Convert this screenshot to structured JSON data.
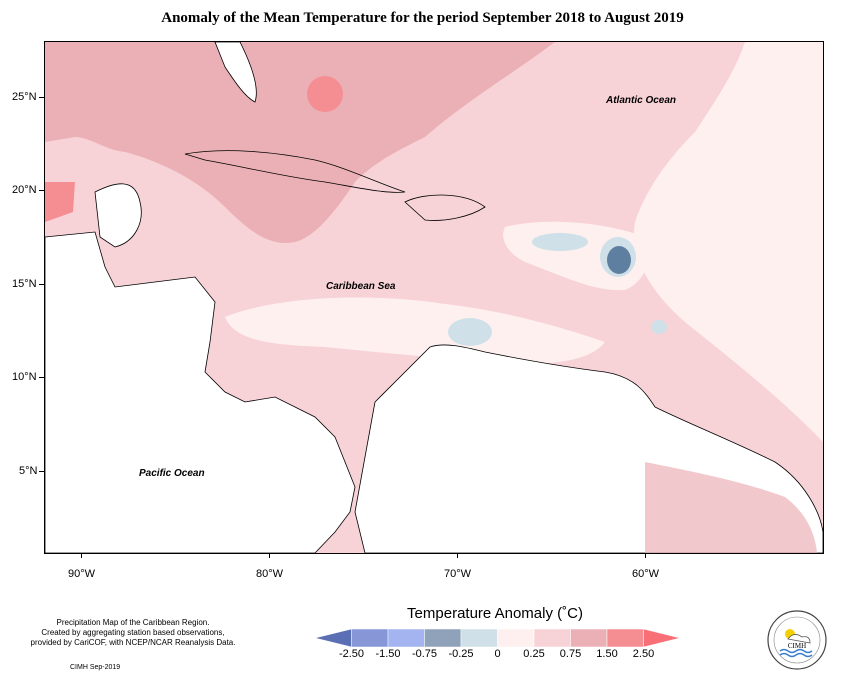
{
  "title": "Anomaly of the Mean Temperature for the period September 2018 to August 2019",
  "map": {
    "latitude_labels": [
      "25°N",
      "20°N",
      "15°N",
      "10°N",
      "5°N"
    ],
    "longitude_labels": [
      "90°W",
      "80°W",
      "70°W",
      "60°W"
    ],
    "region_labels": {
      "atlantic": "Atlantic Ocean",
      "caribbean": "Caribbean Sea",
      "pacific": "Pacific Ocean"
    }
  },
  "legend": {
    "title": "Temperature Anomaly (˚C)",
    "tick_labels": [
      "-2.50",
      "-1.50",
      "-0.75",
      "-0.25",
      "0",
      "0.25",
      "0.75",
      "1.50",
      "2.50"
    ],
    "colors": [
      "#5b6fb5",
      "#8696d6",
      "#a3b4f0",
      "#8fa2b9",
      "#cfe0e8",
      "#fff0f0",
      "#f7d3d8",
      "#ebb0b5",
      "#f58e93",
      "#f86f75"
    ]
  },
  "credits": {
    "lines": [
      "Precipitation Map of the Caribbean Region.",
      "Created by aggregating station based observations,",
      "provided by CariCOF, with NCEP/NCAR Reanalysis Data."
    ],
    "footer": "CIMH Sep-2019"
  },
  "logo": {
    "text": "CIMH",
    "icon": "cimh-sun-cloud-logo-icon"
  }
}
